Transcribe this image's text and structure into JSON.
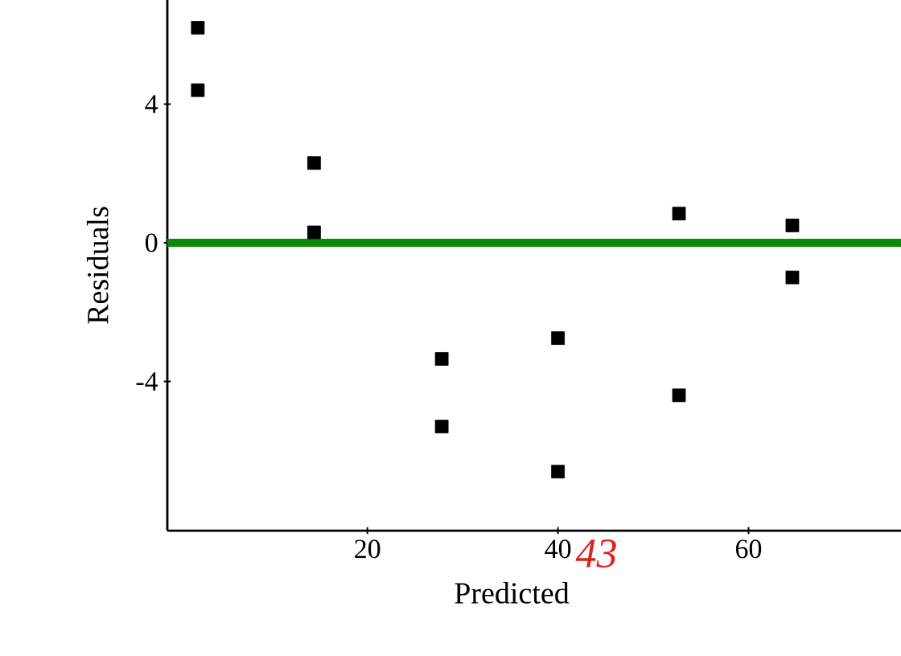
{
  "chart_data": {
    "type": "scatter",
    "xlabel": "Predicted",
    "ylabel": "Residuals",
    "x": [
      2.2,
      2.2,
      14.4,
      14.4,
      27.8,
      27.8,
      40,
      40,
      52.7,
      52.7,
      64.6,
      64.6
    ],
    "values": [
      6.2,
      4.4,
      2.3,
      0.3,
      -3.35,
      -5.3,
      -2.75,
      -6.6,
      0.84,
      -4.4,
      0.5,
      -1.0
    ],
    "color": "#000000",
    "marker": "square",
    "xlim": [
      -1,
      76
    ],
    "ylim": [
      -8.3,
      7
    ],
    "xticks": [
      20,
      40,
      60
    ],
    "yticks": [
      -4,
      0,
      4
    ],
    "ref_lines": [
      {
        "axis": "y",
        "value": 0,
        "color": "#0a8a0a"
      }
    ],
    "annotations": [
      "43"
    ]
  }
}
